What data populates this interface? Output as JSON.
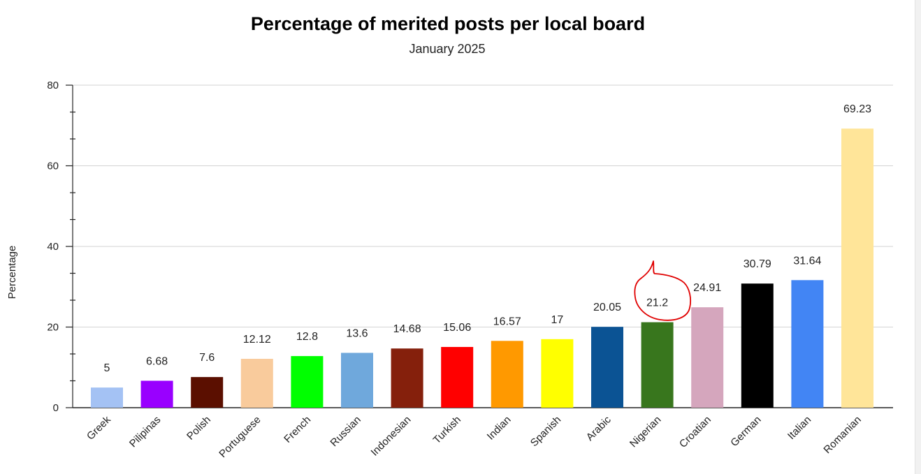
{
  "chart_data": {
    "type": "bar",
    "title": "Percentage of merited posts per local board",
    "subtitle": "January 2025",
    "xlabel": "",
    "ylabel": "Percentage",
    "ylim": [
      0,
      80
    ],
    "yticks": [
      0,
      20,
      40,
      60,
      80
    ],
    "grid": true,
    "legend": "none",
    "categories": [
      "Greek",
      "Pilipinas",
      "Polish",
      "Portuguese",
      "French",
      "Russian",
      "Indonesian",
      "Turkish",
      "Indian",
      "Spanish",
      "Arabic",
      "Nigerian",
      "Croatian",
      "German",
      "Italian",
      "Romanian"
    ],
    "values": [
      5,
      6.68,
      7.6,
      12.12,
      12.8,
      13.6,
      14.68,
      15.06,
      16.57,
      17,
      20.05,
      21.2,
      24.91,
      30.79,
      31.64,
      69.23
    ],
    "value_labels": [
      "5",
      "6.68",
      "7.6",
      "12.12",
      "12.8",
      "13.6",
      "14.68",
      "15.06",
      "16.57",
      "17",
      "20.05",
      "21.2",
      "24.91",
      "30.79",
      "31.64",
      "69.23"
    ],
    "colors": [
      "#a4c2f4",
      "#9900ff",
      "#5b0f00",
      "#f9cb9c",
      "#00ff00",
      "#6fa8dc",
      "#85200c",
      "#ff0000",
      "#ff9900",
      "#ffff00",
      "#0b5394",
      "#38761d",
      "#d5a6bd",
      "#000000",
      "#4285f4",
      "#ffe599"
    ],
    "annotation": {
      "type": "hand-drawn circle",
      "target": "Nigerian",
      "color": "#e00000"
    }
  }
}
